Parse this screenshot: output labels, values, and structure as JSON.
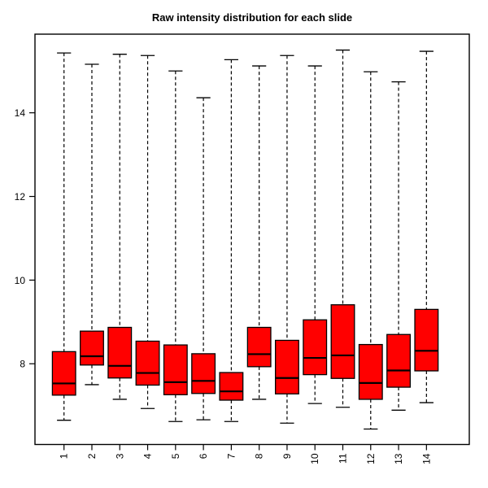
{
  "chart_data": {
    "type": "boxplot",
    "title": "Raw intensity distribution for each slide",
    "xlabel": "",
    "ylabel": "",
    "categories": [
      "1",
      "2",
      "3",
      "4",
      "5",
      "6",
      "7",
      "8",
      "9",
      "10",
      "11",
      "12",
      "13",
      "14"
    ],
    "y_ticks": [
      8,
      10,
      12,
      14
    ],
    "ylim": [
      6.07,
      15.88
    ],
    "grid": false,
    "legend": "none",
    "colors": {
      "box_fill": "#FF0000",
      "line": "#000000",
      "background": "#FFFFFF"
    },
    "series": [
      {
        "slide": "1",
        "whisker_low": 6.65,
        "q1": 7.25,
        "median": 7.53,
        "q3": 8.29,
        "whisker_high": 15.43
      },
      {
        "slide": "2",
        "whisker_low": 7.5,
        "q1": 7.97,
        "median": 8.18,
        "q3": 8.78,
        "whisker_high": 15.16
      },
      {
        "slide": "3",
        "whisker_low": 7.15,
        "q1": 7.66,
        "median": 7.95,
        "q3": 8.87,
        "whisker_high": 15.4
      },
      {
        "slide": "4",
        "whisker_low": 6.93,
        "q1": 7.49,
        "median": 7.78,
        "q3": 8.54,
        "whisker_high": 15.37
      },
      {
        "slide": "5",
        "whisker_low": 6.62,
        "q1": 7.26,
        "median": 7.56,
        "q3": 8.45,
        "whisker_high": 15.0
      },
      {
        "slide": "6",
        "whisker_low": 6.66,
        "q1": 7.29,
        "median": 7.59,
        "q3": 8.24,
        "whisker_high": 14.36
      },
      {
        "slide": "7",
        "whisker_low": 6.62,
        "q1": 7.13,
        "median": 7.34,
        "q3": 7.79,
        "whisker_high": 15.27
      },
      {
        "slide": "8",
        "whisker_low": 7.15,
        "q1": 7.93,
        "median": 8.23,
        "q3": 8.87,
        "whisker_high": 15.12
      },
      {
        "slide": "9",
        "whisker_low": 6.58,
        "q1": 7.28,
        "median": 7.66,
        "q3": 8.56,
        "whisker_high": 15.37
      },
      {
        "slide": "10",
        "whisker_low": 7.05,
        "q1": 7.74,
        "median": 8.14,
        "q3": 9.05,
        "whisker_high": 15.12
      },
      {
        "slide": "11",
        "whisker_low": 6.96,
        "q1": 7.65,
        "median": 8.2,
        "q3": 9.41,
        "whisker_high": 15.5
      },
      {
        "slide": "12",
        "whisker_low": 6.44,
        "q1": 7.15,
        "median": 7.54,
        "q3": 8.46,
        "whisker_high": 14.98
      },
      {
        "slide": "13",
        "whisker_low": 6.89,
        "q1": 7.44,
        "median": 7.84,
        "q3": 8.7,
        "whisker_high": 14.74
      },
      {
        "slide": "14",
        "whisker_low": 7.07,
        "q1": 7.83,
        "median": 8.31,
        "q3": 9.3,
        "whisker_high": 15.47
      }
    ]
  }
}
